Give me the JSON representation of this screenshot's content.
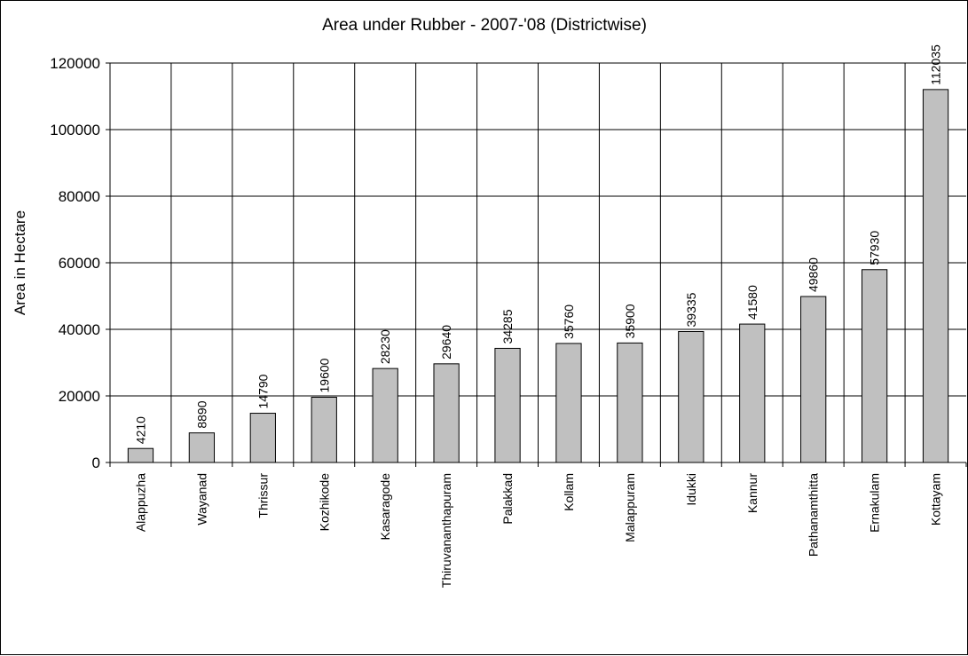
{
  "chart_data": {
    "type": "bar",
    "title": "Area under Rubber - 2007-'08 (Districtwise)",
    "xlabel": "",
    "ylabel": "Area in Hectare",
    "ylim": [
      0,
      120000
    ],
    "yticks": [
      "0",
      "20000",
      "40000",
      "60000",
      "80000",
      "100000",
      "120000"
    ],
    "ytick_values": [
      0,
      20000,
      40000,
      60000,
      80000,
      100000,
      120000
    ],
    "grid": true,
    "categories": [
      "Alappuzha",
      "Wayanad",
      "Thrissur",
      "Kozhikode",
      "Kasaragode",
      "Thiruvananthapuram",
      "Palakkad",
      "Kollam",
      "Malappuram",
      "Idukki",
      "Kannur",
      "Pathanamthitta",
      "Ernakulam",
      "Kottayam"
    ],
    "values": [
      4210,
      8890,
      14790,
      19600,
      28230,
      29640,
      34285,
      35760,
      35900,
      39335,
      41580,
      49860,
      57930,
      112035
    ],
    "data_labels": [
      "4210",
      "8890",
      "14790",
      "19600",
      "28230",
      "29640",
      "34285",
      "35760",
      "35900",
      "39335",
      "41580",
      "49860",
      "57930",
      "112035"
    ],
    "bar_color": "#c0c0c0",
    "bar_edge_color": "#000000"
  }
}
